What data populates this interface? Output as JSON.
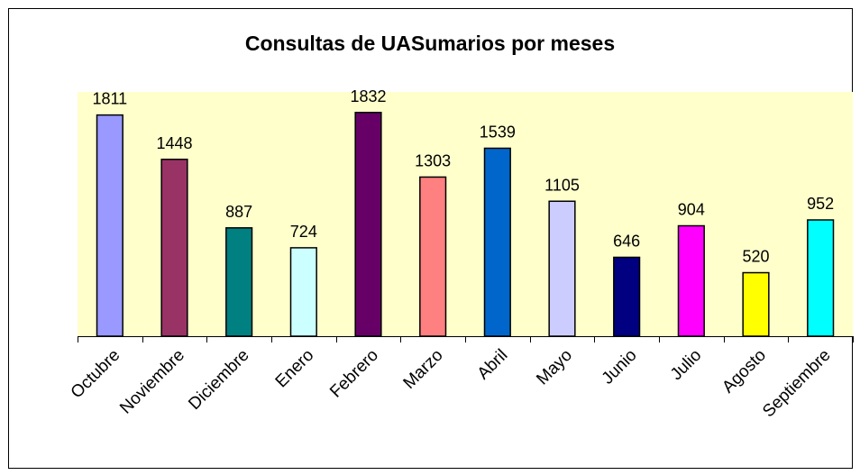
{
  "chart_data": {
    "type": "bar",
    "title": "Consultas de UASumarios por meses",
    "categories": [
      "Octubre",
      "Noviembre",
      "Diciembre",
      "Enero",
      "Febrero",
      "Marzo",
      "Abril",
      "Mayo",
      "Junio",
      "Julio",
      "Agosto",
      "Septiembre"
    ],
    "values": [
      1811,
      1448,
      887,
      724,
      1832,
      1303,
      1539,
      1105,
      646,
      904,
      520,
      952
    ],
    "colors": [
      "#9999ff",
      "#993366",
      "#008080",
      "#ccffff",
      "#660066",
      "#ff8080",
      "#0066cc",
      "#ccccff",
      "#000080",
      "#ff00ff",
      "#ffff00",
      "#00ffff"
    ],
    "ylim": [
      0,
      2000
    ],
    "plot_background": "#ffffcc"
  }
}
